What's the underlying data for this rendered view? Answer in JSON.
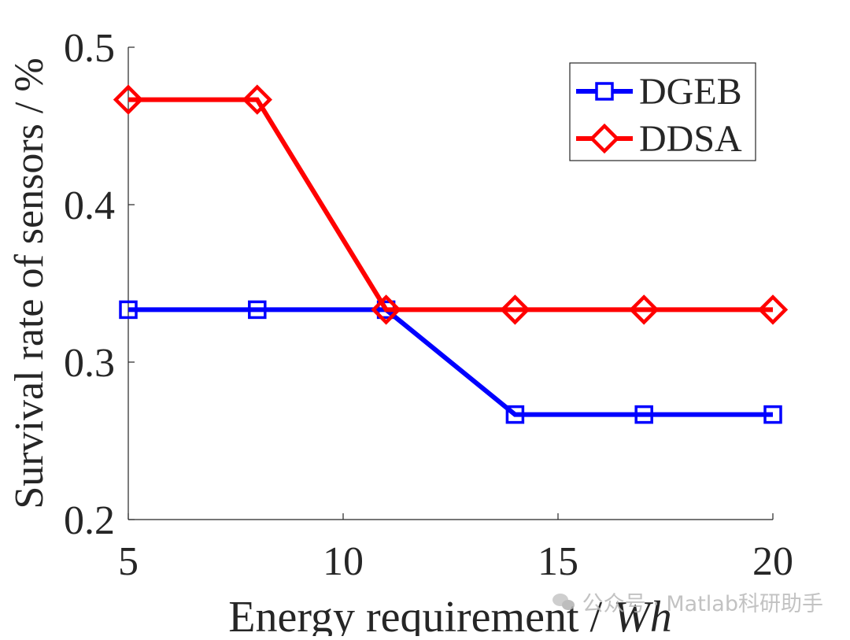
{
  "chart_data": {
    "type": "line",
    "title": "",
    "xlabel": "Energy requirement / ",
    "xlabel_unit": "Wh",
    "ylabel": "Survival rate of sensors / %",
    "x": [
      5,
      8,
      11,
      14,
      17,
      20
    ],
    "xlim": [
      5,
      20
    ],
    "ylim": [
      0.2,
      0.5
    ],
    "xticks": [
      5,
      10,
      15,
      20
    ],
    "yticks": [
      0.2,
      0.3,
      0.4,
      0.5
    ],
    "xtick_labels": [
      "5",
      "10",
      "15",
      "20"
    ],
    "ytick_labels": [
      "0.2",
      "0.3",
      "0.4",
      "0.5"
    ],
    "legend_position": "top-right",
    "series": [
      {
        "name": "DGEB",
        "color": "#0000ff",
        "marker": "square",
        "values": [
          0.3333,
          0.3333,
          0.3333,
          0.2667,
          0.2667,
          0.2667
        ]
      },
      {
        "name": "DDSA",
        "color": "#ff0000",
        "marker": "diamond",
        "values": [
          0.4667,
          0.4667,
          0.3333,
          0.3333,
          0.3333,
          0.3333
        ]
      }
    ]
  },
  "watermark": {
    "text": "公众号 · Matlab科研助手",
    "icon": "wechat-icon"
  }
}
